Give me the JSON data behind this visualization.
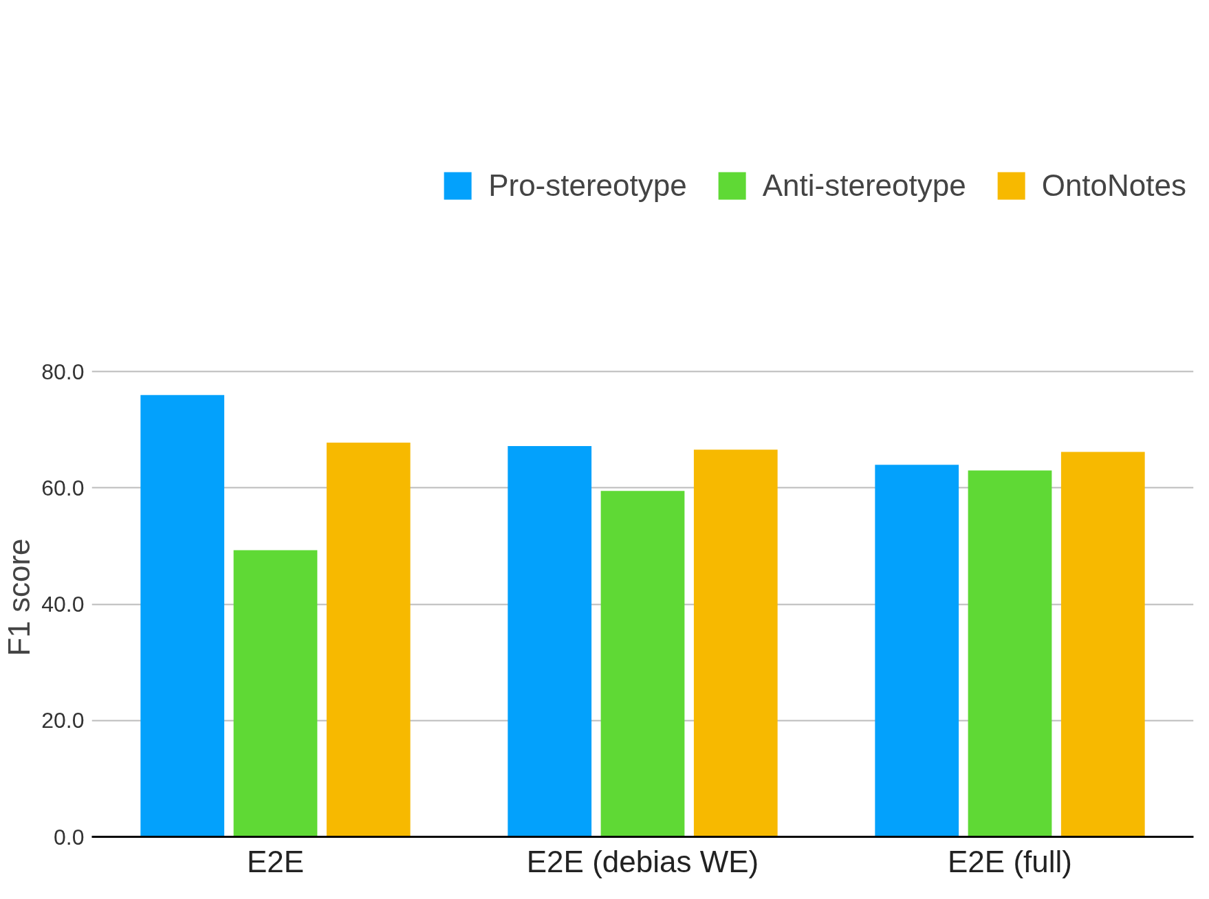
{
  "chart_data": {
    "type": "bar",
    "ylabel": "F1 score",
    "categories": [
      "E2E",
      "E2E (debias WE)",
      "E2E (full)"
    ],
    "series": [
      {
        "name": "Pro-stereotype",
        "color": "#03a1fc",
        "values": [
          76.0,
          67.2,
          64.0
        ]
      },
      {
        "name": "Anti-stereotype",
        "color": "#5fd935",
        "values": [
          49.3,
          59.5,
          63.0
        ]
      },
      {
        "name": "OntoNotes",
        "color": "#f7b900",
        "values": [
          67.8,
          66.6,
          66.2
        ]
      }
    ],
    "ylim": [
      0,
      80
    ],
    "yticks": [
      {
        "value": 0,
        "label": "0.0"
      },
      {
        "value": 20,
        "label": "20.0"
      },
      {
        "value": 40,
        "label": "40.0"
      },
      {
        "value": 60,
        "label": "60.0"
      },
      {
        "value": 80,
        "label": "80.0"
      }
    ],
    "grid": "y",
    "legend": "top"
  }
}
